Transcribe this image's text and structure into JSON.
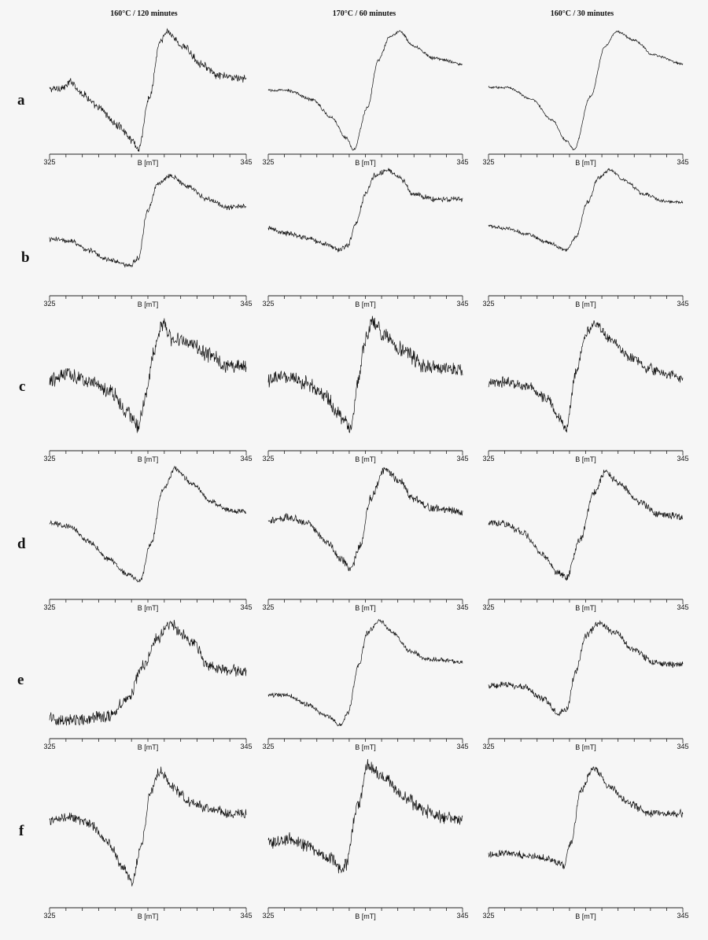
{
  "figure": {
    "column_titles": [
      "160°C / 120 minutes",
      "170°C / 60 minutes",
      "160°C / 30 minutes"
    ],
    "row_labels": [
      "a",
      "b",
      "c",
      "d",
      "e",
      "f"
    ]
  },
  "chart_data": {
    "type": "line",
    "panel_grid": {
      "rows": 6,
      "cols": 3
    },
    "xlabel": "B [mT]",
    "ylabel": "",
    "xlim": [
      325,
      345
    ],
    "x_tick_labels": [
      "325",
      "345"
    ],
    "minor_ticks_per_axis": 13,
    "y_axis_shown": false,
    "grid": false,
    "description_of_traces": "EPR derivative spectra; each panel gives field-point keyframes (B in mT) and relative signal amplitude (-1 = trough, +1 = peak)",
    "panels": [
      {
        "row": "a",
        "column": "160°C / 120 minutes",
        "noise": 0.05,
        "points": [
          [
            325.0,
            0.02
          ],
          [
            326.5,
            0.05
          ],
          [
            327.2,
            0.15
          ],
          [
            328.3,
            -0.05
          ],
          [
            330.0,
            -0.3
          ],
          [
            332.0,
            -0.6
          ],
          [
            333.5,
            -0.85
          ],
          [
            334.0,
            -1.0
          ],
          [
            335.2,
            -0.1
          ],
          [
            336.2,
            0.8
          ],
          [
            337.0,
            1.0
          ],
          [
            338.5,
            0.75
          ],
          [
            340.5,
            0.45
          ],
          [
            342.0,
            0.25
          ],
          [
            345.0,
            0.2
          ]
        ]
      },
      {
        "row": "a",
        "column": "170°C / 60 minutes",
        "noise": 0.02,
        "points": [
          [
            325.0,
            0.0
          ],
          [
            327.0,
            0.0
          ],
          [
            329.5,
            -0.15
          ],
          [
            331.5,
            -0.45
          ],
          [
            333.0,
            -0.8
          ],
          [
            333.8,
            -1.0
          ],
          [
            335.2,
            -0.3
          ],
          [
            336.3,
            0.5
          ],
          [
            337.5,
            0.9
          ],
          [
            338.5,
            1.0
          ],
          [
            340.0,
            0.75
          ],
          [
            342.0,
            0.55
          ],
          [
            345.0,
            0.45
          ]
        ]
      },
      {
        "row": "a",
        "column": "160°C / 30 minutes",
        "noise": 0.015,
        "points": [
          [
            325.0,
            0.05
          ],
          [
            327.0,
            0.05
          ],
          [
            329.5,
            -0.15
          ],
          [
            331.5,
            -0.5
          ],
          [
            333.0,
            -0.85
          ],
          [
            333.8,
            -1.0
          ],
          [
            335.5,
            -0.1
          ],
          [
            337.0,
            0.75
          ],
          [
            338.2,
            1.0
          ],
          [
            340.0,
            0.85
          ],
          [
            342.0,
            0.6
          ],
          [
            345.0,
            0.45
          ]
        ]
      },
      {
        "row": "b",
        "column": "160°C / 120 minutes",
        "noise": 0.04,
        "points": [
          [
            325.0,
            -0.3
          ],
          [
            327.0,
            -0.32
          ],
          [
            329.0,
            -0.5
          ],
          [
            331.0,
            -0.68
          ],
          [
            333.2,
            -0.8
          ],
          [
            334.0,
            -0.65
          ],
          [
            335.0,
            0.25
          ],
          [
            336.0,
            0.75
          ],
          [
            337.3,
            0.9
          ],
          [
            339.0,
            0.7
          ],
          [
            341.0,
            0.45
          ],
          [
            343.0,
            0.3
          ],
          [
            345.0,
            0.32
          ]
        ]
      },
      {
        "row": "b",
        "column": "170°C / 60 minutes",
        "noise": 0.04,
        "points": [
          [
            325.0,
            -0.1
          ],
          [
            327.0,
            -0.18
          ],
          [
            329.0,
            -0.28
          ],
          [
            331.0,
            -0.38
          ],
          [
            332.3,
            -0.5
          ],
          [
            333.2,
            -0.4
          ],
          [
            334.0,
            0.0
          ],
          [
            335.0,
            0.55
          ],
          [
            336.0,
            0.9
          ],
          [
            337.3,
            1.0
          ],
          [
            338.5,
            0.85
          ],
          [
            340.0,
            0.55
          ],
          [
            342.0,
            0.45
          ],
          [
            345.0,
            0.45
          ]
        ]
      },
      {
        "row": "b",
        "column": "160°C / 30 minutes",
        "noise": 0.025,
        "points": [
          [
            325.0,
            -0.05
          ],
          [
            327.0,
            -0.1
          ],
          [
            329.0,
            -0.2
          ],
          [
            331.0,
            -0.35
          ],
          [
            333.0,
            -0.5
          ],
          [
            334.0,
            -0.25
          ],
          [
            335.2,
            0.4
          ],
          [
            336.3,
            0.85
          ],
          [
            337.5,
            1.0
          ],
          [
            339.0,
            0.8
          ],
          [
            341.0,
            0.55
          ],
          [
            343.0,
            0.42
          ],
          [
            345.0,
            0.4
          ]
        ]
      },
      {
        "row": "c",
        "column": "160°C / 120 minutes",
        "noise": 0.1,
        "points": [
          [
            325.0,
            -0.05
          ],
          [
            327.0,
            0.05
          ],
          [
            329.0,
            -0.05
          ],
          [
            331.0,
            -0.2
          ],
          [
            333.0,
            -0.6
          ],
          [
            334.0,
            -0.85
          ],
          [
            334.8,
            -0.3
          ],
          [
            335.6,
            0.45
          ],
          [
            336.5,
            0.9
          ],
          [
            337.5,
            0.65
          ],
          [
            339.5,
            0.55
          ],
          [
            341.0,
            0.4
          ],
          [
            343.0,
            0.2
          ],
          [
            345.0,
            0.2
          ]
        ]
      },
      {
        "row": "c",
        "column": "170°C / 60 minutes",
        "noise": 0.1,
        "points": [
          [
            325.0,
            -0.05
          ],
          [
            327.0,
            0.0
          ],
          [
            329.0,
            -0.1
          ],
          [
            331.0,
            -0.35
          ],
          [
            332.8,
            -0.7
          ],
          [
            333.5,
            -0.85
          ],
          [
            334.3,
            0.0
          ],
          [
            335.0,
            0.65
          ],
          [
            335.8,
            0.95
          ],
          [
            337.0,
            0.7
          ],
          [
            339.0,
            0.45
          ],
          [
            341.0,
            0.2
          ],
          [
            343.0,
            0.15
          ],
          [
            345.0,
            0.15
          ]
        ]
      },
      {
        "row": "c",
        "column": "160°C / 30 minutes",
        "noise": 0.07,
        "points": [
          [
            325.0,
            -0.1
          ],
          [
            327.0,
            -0.08
          ],
          [
            329.0,
            -0.15
          ],
          [
            331.0,
            -0.35
          ],
          [
            332.3,
            -0.7
          ],
          [
            333.0,
            -0.85
          ],
          [
            334.0,
            0.1
          ],
          [
            335.0,
            0.75
          ],
          [
            336.0,
            0.9
          ],
          [
            337.5,
            0.65
          ],
          [
            339.5,
            0.35
          ],
          [
            341.5,
            0.15
          ],
          [
            343.5,
            0.05
          ],
          [
            345.0,
            0.0
          ]
        ]
      },
      {
        "row": "d",
        "column": "160°C / 120 minutes",
        "noise": 0.035,
        "points": [
          [
            325.0,
            0.05
          ],
          [
            327.0,
            0.0
          ],
          [
            329.0,
            -0.25
          ],
          [
            331.0,
            -0.55
          ],
          [
            333.0,
            -0.8
          ],
          [
            334.2,
            -0.9
          ],
          [
            335.3,
            -0.3
          ],
          [
            336.5,
            0.6
          ],
          [
            337.8,
            0.95
          ],
          [
            339.5,
            0.7
          ],
          [
            341.5,
            0.4
          ],
          [
            343.5,
            0.25
          ],
          [
            345.0,
            0.25
          ]
        ]
      },
      {
        "row": "d",
        "column": "170°C / 60 minutes",
        "noise": 0.05,
        "points": [
          [
            325.0,
            0.1
          ],
          [
            327.0,
            0.15
          ],
          [
            329.0,
            0.05
          ],
          [
            331.0,
            -0.25
          ],
          [
            332.5,
            -0.55
          ],
          [
            333.5,
            -0.7
          ],
          [
            334.5,
            -0.3
          ],
          [
            335.5,
            0.45
          ],
          [
            337.0,
            0.95
          ],
          [
            338.5,
            0.75
          ],
          [
            340.0,
            0.45
          ],
          [
            342.0,
            0.3
          ],
          [
            345.0,
            0.25
          ]
        ]
      },
      {
        "row": "d",
        "column": "160°C / 30 minutes",
        "noise": 0.045,
        "points": [
          [
            325.0,
            0.05
          ],
          [
            326.5,
            0.05
          ],
          [
            328.5,
            -0.1
          ],
          [
            330.5,
            -0.45
          ],
          [
            332.0,
            -0.75
          ],
          [
            333.0,
            -0.85
          ],
          [
            334.5,
            -0.2
          ],
          [
            335.8,
            0.55
          ],
          [
            337.0,
            0.9
          ],
          [
            338.5,
            0.7
          ],
          [
            340.5,
            0.4
          ],
          [
            342.5,
            0.2
          ],
          [
            345.0,
            0.15
          ]
        ]
      },
      {
        "row": "e",
        "column": "160°C / 120 minutes",
        "noise": 0.08,
        "points": [
          [
            325.0,
            -0.7
          ],
          [
            327.0,
            -0.72
          ],
          [
            329.0,
            -0.7
          ],
          [
            331.0,
            -0.65
          ],
          [
            333.0,
            -0.35
          ],
          [
            334.5,
            0.2
          ],
          [
            336.0,
            0.65
          ],
          [
            337.3,
            0.9
          ],
          [
            338.5,
            0.7
          ],
          [
            339.8,
            0.55
          ],
          [
            341.0,
            0.2
          ],
          [
            343.0,
            0.1
          ],
          [
            345.0,
            0.1
          ]
        ]
      },
      {
        "row": "e",
        "column": "170°C / 60 minutes",
        "noise": 0.03,
        "points": [
          [
            325.0,
            -0.3
          ],
          [
            327.0,
            -0.3
          ],
          [
            329.0,
            -0.45
          ],
          [
            331.0,
            -0.65
          ],
          [
            332.5,
            -0.8
          ],
          [
            333.2,
            -0.6
          ],
          [
            334.3,
            0.2
          ],
          [
            335.2,
            0.75
          ],
          [
            336.5,
            0.95
          ],
          [
            337.8,
            0.75
          ],
          [
            339.5,
            0.45
          ],
          [
            341.5,
            0.3
          ],
          [
            343.5,
            0.28
          ],
          [
            345.0,
            0.25
          ]
        ]
      },
      {
        "row": "e",
        "column": "160°C / 30 minutes",
        "noise": 0.045,
        "points": [
          [
            325.0,
            -0.15
          ],
          [
            327.0,
            -0.12
          ],
          [
            328.5,
            -0.15
          ],
          [
            330.5,
            -0.35
          ],
          [
            332.2,
            -0.6
          ],
          [
            333.0,
            -0.55
          ],
          [
            334.0,
            0.1
          ],
          [
            335.0,
            0.7
          ],
          [
            336.3,
            0.9
          ],
          [
            338.0,
            0.75
          ],
          [
            340.0,
            0.45
          ],
          [
            342.0,
            0.25
          ],
          [
            345.0,
            0.2
          ]
        ]
      },
      {
        "row": "f",
        "column": "160°C / 120 minutes",
        "noise": 0.06,
        "points": [
          [
            325.0,
            0.1
          ],
          [
            327.0,
            0.15
          ],
          [
            329.0,
            0.05
          ],
          [
            331.0,
            -0.25
          ],
          [
            332.5,
            -0.65
          ],
          [
            333.4,
            -0.85
          ],
          [
            334.3,
            -0.3
          ],
          [
            335.3,
            0.55
          ],
          [
            336.2,
            0.85
          ],
          [
            337.5,
            0.6
          ],
          [
            339.5,
            0.35
          ],
          [
            341.5,
            0.25
          ],
          [
            343.5,
            0.2
          ],
          [
            345.0,
            0.2
          ]
        ]
      },
      {
        "row": "f",
        "column": "170°C / 60 minutes",
        "noise": 0.08,
        "points": [
          [
            325.0,
            -0.25
          ],
          [
            327.0,
            -0.2
          ],
          [
            329.0,
            -0.3
          ],
          [
            331.0,
            -0.45
          ],
          [
            332.5,
            -0.65
          ],
          [
            333.0,
            -0.6
          ],
          [
            334.2,
            0.3
          ],
          [
            335.3,
            0.95
          ],
          [
            337.0,
            0.75
          ],
          [
            339.0,
            0.45
          ],
          [
            341.0,
            0.25
          ],
          [
            343.0,
            0.15
          ],
          [
            345.0,
            0.1
          ]
        ]
      },
      {
        "row": "f",
        "column": "160°C / 30 minutes",
        "noise": 0.045,
        "points": [
          [
            325.0,
            -0.45
          ],
          [
            327.0,
            -0.4
          ],
          [
            329.0,
            -0.45
          ],
          [
            331.0,
            -0.5
          ],
          [
            332.7,
            -0.6
          ],
          [
            333.5,
            -0.25
          ],
          [
            334.5,
            0.55
          ],
          [
            335.8,
            0.9
          ],
          [
            337.5,
            0.6
          ],
          [
            339.5,
            0.35
          ],
          [
            341.5,
            0.2
          ],
          [
            345.0,
            0.2
          ]
        ]
      }
    ]
  }
}
